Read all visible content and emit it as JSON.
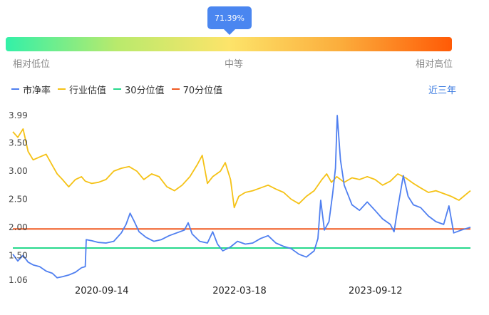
{
  "gauge": {
    "percentile_label": "71.39%",
    "percentile_value": 0.7139,
    "low_label": "相对低位",
    "mid_label": "中等",
    "high_label": "相对高位",
    "colors": [
      "#33f0a8",
      "#b9ea6c",
      "#fde46a",
      "#fbad3c",
      "#ff5a06"
    ]
  },
  "period_label": "近三年",
  "chart_data": {
    "type": "line",
    "x_ticks": [
      "2020-09-14",
      "2022-03-18",
      "2023-09-12"
    ],
    "y_ticks": [
      "3.99",
      "3.50",
      "3.00",
      "2.50",
      "2.00",
      "1.50",
      "1.06"
    ],
    "ylim": [
      1.06,
      3.99
    ],
    "xlim": [
      "2019-09-25",
      "2024-09-25"
    ],
    "grid": false,
    "legend_position": "top-left",
    "series": [
      {
        "name": "市净率",
        "color": "#4f7ff0",
        "points": [
          [
            "2019-09-25",
            1.52
          ],
          [
            "2019-10-15",
            1.4
          ],
          [
            "2019-11-05",
            1.5
          ],
          [
            "2019-11-25",
            1.38
          ],
          [
            "2019-12-15",
            1.33
          ],
          [
            "2020-01-10",
            1.3
          ],
          [
            "2020-02-05",
            1.22
          ],
          [
            "2020-03-01",
            1.18
          ],
          [
            "2020-03-20",
            1.1
          ],
          [
            "2020-04-10",
            1.12
          ],
          [
            "2020-05-05",
            1.15
          ],
          [
            "2020-06-01",
            1.2
          ],
          [
            "2020-06-25",
            1.28
          ],
          [
            "2020-07-10",
            1.3
          ],
          [
            "2020-07-14",
            1.78
          ],
          [
            "2020-08-05",
            1.76
          ],
          [
            "2020-09-01",
            1.73
          ],
          [
            "2020-10-01",
            1.72
          ],
          [
            "2020-11-01",
            1.75
          ],
          [
            "2020-12-01",
            1.9
          ],
          [
            "2020-12-20",
            2.05
          ],
          [
            "2021-01-05",
            2.25
          ],
          [
            "2021-01-20",
            2.12
          ],
          [
            "2021-02-10",
            1.92
          ],
          [
            "2021-03-10",
            1.82
          ],
          [
            "2021-04-10",
            1.75
          ],
          [
            "2021-05-10",
            1.78
          ],
          [
            "2021-06-10",
            1.85
          ],
          [
            "2021-07-10",
            1.9
          ],
          [
            "2021-08-10",
            1.95
          ],
          [
            "2021-08-25",
            2.08
          ],
          [
            "2021-09-10",
            1.88
          ],
          [
            "2021-10-10",
            1.75
          ],
          [
            "2021-11-10",
            1.72
          ],
          [
            "2021-12-01",
            1.92
          ],
          [
            "2021-12-20",
            1.7
          ],
          [
            "2022-01-10",
            1.58
          ],
          [
            "2022-02-10",
            1.65
          ],
          [
            "2022-03-10",
            1.75
          ],
          [
            "2022-04-10",
            1.7
          ],
          [
            "2022-05-10",
            1.72
          ],
          [
            "2022-06-10",
            1.8
          ],
          [
            "2022-07-10",
            1.85
          ],
          [
            "2022-08-10",
            1.72
          ],
          [
            "2022-09-10",
            1.66
          ],
          [
            "2022-10-10",
            1.62
          ],
          [
            "2022-11-10",
            1.52
          ],
          [
            "2022-12-10",
            1.47
          ],
          [
            "2023-01-10",
            1.58
          ],
          [
            "2023-01-25",
            1.8
          ],
          [
            "2023-02-05",
            2.48
          ],
          [
            "2023-02-20",
            1.95
          ],
          [
            "2023-03-10",
            2.1
          ],
          [
            "2023-03-25",
            2.6
          ],
          [
            "2023-04-05",
            3.05
          ],
          [
            "2023-04-12",
            3.99
          ],
          [
            "2023-04-25",
            3.2
          ],
          [
            "2023-05-10",
            2.75
          ],
          [
            "2023-06-10",
            2.4
          ],
          [
            "2023-07-10",
            2.3
          ],
          [
            "2023-08-10",
            2.45
          ],
          [
            "2023-09-10",
            2.3
          ],
          [
            "2023-10-10",
            2.15
          ],
          [
            "2023-11-10",
            2.05
          ],
          [
            "2023-11-25",
            1.92
          ],
          [
            "2023-12-10",
            2.35
          ],
          [
            "2024-01-01",
            2.92
          ],
          [
            "2024-01-20",
            2.55
          ],
          [
            "2024-02-10",
            2.4
          ],
          [
            "2024-03-10",
            2.35
          ],
          [
            "2024-04-10",
            2.2
          ],
          [
            "2024-05-10",
            2.1
          ],
          [
            "2024-06-10",
            2.05
          ],
          [
            "2024-07-01",
            2.38
          ],
          [
            "2024-07-20",
            1.9
          ],
          [
            "2024-08-20",
            1.95
          ],
          [
            "2024-09-25",
            2.0
          ]
        ]
      },
      {
        "name": "行业估值",
        "color": "#f5c216",
        "points": [
          [
            "2019-09-25",
            3.7
          ],
          [
            "2019-10-15",
            3.6
          ],
          [
            "2019-11-05",
            3.75
          ],
          [
            "2019-11-25",
            3.35
          ],
          [
            "2019-12-15",
            3.2
          ],
          [
            "2020-01-10",
            3.25
          ],
          [
            "2020-02-05",
            3.3
          ],
          [
            "2020-03-01",
            3.1
          ],
          [
            "2020-03-20",
            2.95
          ],
          [
            "2020-04-10",
            2.85
          ],
          [
            "2020-05-05",
            2.72
          ],
          [
            "2020-06-01",
            2.85
          ],
          [
            "2020-06-25",
            2.9
          ],
          [
            "2020-07-10",
            2.82
          ],
          [
            "2020-08-05",
            2.78
          ],
          [
            "2020-09-01",
            2.8
          ],
          [
            "2020-10-01",
            2.85
          ],
          [
            "2020-11-01",
            3.0
          ],
          [
            "2020-12-01",
            3.05
          ],
          [
            "2021-01-01",
            3.08
          ],
          [
            "2021-02-01",
            3.0
          ],
          [
            "2021-03-01",
            2.85
          ],
          [
            "2021-04-01",
            2.95
          ],
          [
            "2021-05-01",
            2.9
          ],
          [
            "2021-06-01",
            2.72
          ],
          [
            "2021-07-01",
            2.65
          ],
          [
            "2021-08-01",
            2.75
          ],
          [
            "2021-09-01",
            2.9
          ],
          [
            "2021-10-01",
            3.12
          ],
          [
            "2021-10-20",
            3.28
          ],
          [
            "2021-11-10",
            2.78
          ],
          [
            "2021-12-01",
            2.9
          ],
          [
            "2022-01-01",
            3.0
          ],
          [
            "2022-01-20",
            3.15
          ],
          [
            "2022-02-10",
            2.85
          ],
          [
            "2022-02-25",
            2.35
          ],
          [
            "2022-03-15",
            2.55
          ],
          [
            "2022-04-10",
            2.62
          ],
          [
            "2022-05-10",
            2.65
          ],
          [
            "2022-06-10",
            2.7
          ],
          [
            "2022-07-10",
            2.75
          ],
          [
            "2022-08-10",
            2.68
          ],
          [
            "2022-09-10",
            2.62
          ],
          [
            "2022-10-10",
            2.5
          ],
          [
            "2022-11-10",
            2.42
          ],
          [
            "2022-12-10",
            2.55
          ],
          [
            "2023-01-10",
            2.65
          ],
          [
            "2023-02-10",
            2.85
          ],
          [
            "2023-03-01",
            2.95
          ],
          [
            "2023-03-20",
            2.8
          ],
          [
            "2023-04-10",
            2.9
          ],
          [
            "2023-05-10",
            2.8
          ],
          [
            "2023-06-10",
            2.88
          ],
          [
            "2023-07-10",
            2.85
          ],
          [
            "2023-08-10",
            2.9
          ],
          [
            "2023-09-10",
            2.85
          ],
          [
            "2023-10-10",
            2.75
          ],
          [
            "2023-11-10",
            2.82
          ],
          [
            "2023-12-10",
            2.95
          ],
          [
            "2024-01-10",
            2.88
          ],
          [
            "2024-02-10",
            2.78
          ],
          [
            "2024-03-10",
            2.7
          ],
          [
            "2024-04-10",
            2.62
          ],
          [
            "2024-05-10",
            2.65
          ],
          [
            "2024-06-10",
            2.6
          ],
          [
            "2024-07-10",
            2.55
          ],
          [
            "2024-08-10",
            2.48
          ],
          [
            "2024-09-25",
            2.65
          ]
        ]
      },
      {
        "name": "30分位值",
        "color": "#27d98c",
        "value": 1.63
      },
      {
        "name": "70分位值",
        "color": "#f05a22",
        "value": 1.97
      }
    ]
  }
}
